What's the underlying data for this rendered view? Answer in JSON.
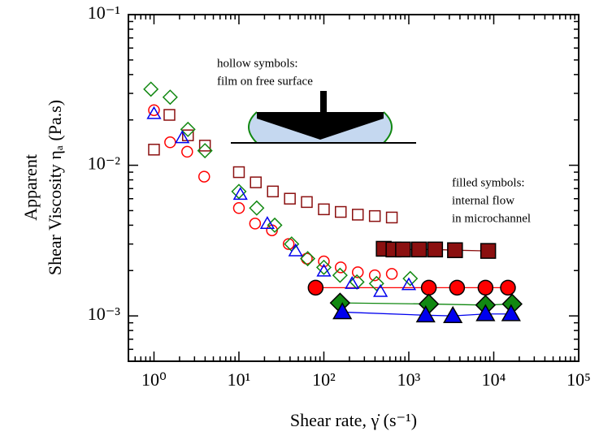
{
  "chart_data": {
    "type": "scatter",
    "x_label": "Shear rate,  γ̇  (s⁻¹)",
    "y_label": [
      "Apparent",
      "Shear Viscosity ηₐ (Pa.s)"
    ],
    "log_x": true,
    "log_y": true,
    "xlim": [
      0.5,
      100000
    ],
    "ylim": [
      0.0005,
      0.1
    ],
    "xticks": [
      {
        "value": 1,
        "label": "10⁰"
      },
      {
        "value": 10,
        "label": "10¹"
      },
      {
        "value": 100,
        "label": "10²"
      },
      {
        "value": 1000,
        "label": "10³"
      },
      {
        "value": 10000,
        "label": "10⁴"
      },
      {
        "value": 100000,
        "label": "10⁵"
      }
    ],
    "yticks": [
      {
        "value": 0.001,
        "label": "10⁻³"
      },
      {
        "value": 0.01,
        "label": "10⁻²"
      },
      {
        "value": 0.1,
        "label": "10⁻¹"
      }
    ],
    "annotations": [
      {
        "text": "hollow symbols:"
      },
      {
        "text": "film on free surface"
      },
      {
        "text": "filled symbols:"
      },
      {
        "text": "internal flow"
      },
      {
        "text": "in microchannel"
      }
    ],
    "series": [
      {
        "color": "#8b1010",
        "marker": "square",
        "filled": false,
        "x": [
          1,
          1.52,
          2.51,
          3.98,
          10,
          15.8,
          25.1,
          39.8,
          63,
          100,
          158,
          251,
          398,
          631
        ],
        "values": [
          0.0127,
          0.0216,
          0.0158,
          0.0135,
          0.009,
          0.0077,
          0.0067,
          0.006,
          0.0057,
          0.0051,
          0.0049,
          0.0047,
          0.0046,
          0.0045
        ]
      },
      {
        "color": "#ff0000",
        "marker": "circle",
        "filled": false,
        "x": [
          1,
          1.55,
          2.46,
          3.9,
          10,
          15.5,
          24.5,
          38.5,
          63,
          100,
          158,
          251,
          398,
          631
        ],
        "values": [
          0.0232,
          0.0142,
          0.0123,
          0.0084,
          0.0052,
          0.0041,
          0.0037,
          0.003,
          0.0024,
          0.0023,
          0.0021,
          0.00195,
          0.00186,
          0.0019
        ]
      },
      {
        "color": "#118811",
        "marker": "diamond",
        "filled": false,
        "x": [
          0.92,
          1.55,
          2.51,
          3.98,
          10,
          16.2,
          26.4,
          41.7,
          64.5,
          100,
          155,
          245,
          417,
          1040
        ],
        "values": [
          0.032,
          0.0283,
          0.0173,
          0.0125,
          0.0067,
          0.0052,
          0.004,
          0.003,
          0.0024,
          0.0021,
          0.00186,
          0.00168,
          0.00164,
          0.00177
        ]
      },
      {
        "color": "#0000ee",
        "marker": "triangle",
        "filled": false,
        "x": [
          1,
          2.15,
          10.4,
          21.6,
          46.5,
          100,
          215,
          464,
          1000
        ],
        "values": [
          0.022,
          0.0152,
          0.0064,
          0.0041,
          0.0027,
          0.00198,
          0.00164,
          0.00145,
          0.00161
        ]
      },
      {
        "color": "#8b1010",
        "marker": "square",
        "filled": true,
        "line": true,
        "x": [
          507,
          660,
          855,
          1320,
          2040,
          3500,
          8600
        ],
        "values": [
          0.00279,
          0.00276,
          0.00276,
          0.00276,
          0.00276,
          0.00273,
          0.0027
        ]
      },
      {
        "color": "#ff0000",
        "marker": "circle",
        "filled": true,
        "line": true,
        "x": [
          80,
          1720,
          3700,
          8000,
          14700
        ],
        "values": [
          0.00154,
          0.00154,
          0.00154,
          0.00154,
          0.00154
        ]
      },
      {
        "color": "#118811",
        "marker": "diamond",
        "filled": true,
        "line": true,
        "x": [
          155,
          1720,
          8000,
          16500
        ],
        "values": [
          0.00122,
          0.0012,
          0.00118,
          0.0012
        ]
      },
      {
        "color": "#0000ee",
        "marker": "triangle",
        "filled": true,
        "line": true,
        "x": [
          165,
          1580,
          3300,
          8000,
          16000
        ],
        "values": [
          0.00106,
          0.00101,
          0.001,
          0.00103,
          0.00103
        ]
      }
    ]
  }
}
